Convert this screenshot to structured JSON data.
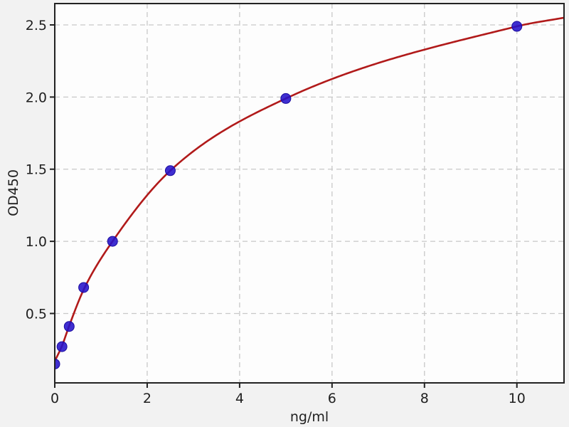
{
  "figure": {
    "background_color": "#f2f2f2",
    "plot_background_color": "#fdfdfd",
    "axis_color": "#222222",
    "grid_color": "#c8c8c8",
    "text_color": "#1f1f1f"
  },
  "chart_data": {
    "type": "scatter",
    "title": "",
    "xlabel": "ng/ml",
    "ylabel": "OD450",
    "xlim": [
      0,
      11.02
    ],
    "ylim": [
      0.019,
      2.648
    ],
    "grid": true,
    "grid_style": "dashed",
    "legend": null,
    "x_ticks": {
      "values": [
        0,
        2,
        4,
        6,
        8,
        10
      ],
      "labels": [
        "0",
        "2",
        "4",
        "6",
        "8",
        "10"
      ]
    },
    "y_ticks": {
      "values": [
        0.5,
        1.0,
        1.5,
        2.0,
        2.5
      ],
      "labels": [
        "0.5",
        "1.0",
        "1.5",
        "2.0",
        "2.5"
      ]
    },
    "series": [
      {
        "name": "standards",
        "kind": "scatter",
        "marker": "circle",
        "color": "#2412cb",
        "points": [
          [
            0,
            0.15
          ],
          [
            0.156,
            0.27
          ],
          [
            0.3125,
            0.41
          ],
          [
            0.625,
            0.68
          ],
          [
            1.25,
            1.0
          ],
          [
            2.5,
            1.49
          ],
          [
            5,
            1.99
          ],
          [
            10,
            2.49
          ]
        ]
      },
      {
        "name": "fit_curve",
        "kind": "line",
        "color": "#b11a1a",
        "points": [
          [
            0,
            0.17
          ],
          [
            0.156,
            0.275
          ],
          [
            0.3125,
            0.415
          ],
          [
            0.625,
            0.665
          ],
          [
            1.25,
            1.0
          ],
          [
            2.5,
            1.49
          ],
          [
            5,
            1.99
          ],
          [
            10,
            2.49
          ],
          [
            11.02,
            2.55
          ]
        ]
      }
    ]
  }
}
